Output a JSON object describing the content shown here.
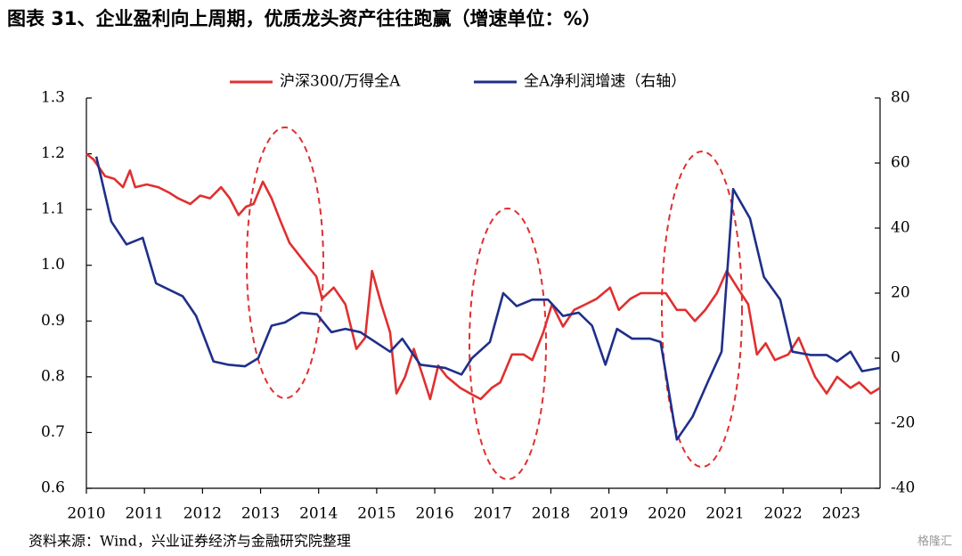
{
  "chart_data": {
    "type": "line",
    "title": "图表 31、企业盈利向上周期，优质龙头资产往往跑赢（增速单位：%）",
    "source": "资料来源：Wind，兴业证券经济与金融研究院整理",
    "watermark": "格隆汇",
    "xlim": [
      2010,
      2023.67
    ],
    "xticks": [
      2010,
      2011,
      2012,
      2013,
      2014,
      2015,
      2016,
      2017,
      2018,
      2019,
      2020,
      2021,
      2022,
      2023
    ],
    "ylim": [
      0.6,
      1.3
    ],
    "yticks": [
      0.6,
      0.7,
      0.8,
      0.9,
      {
        "value": 1,
        "label": "1.0"
      },
      1.1,
      1.2,
      1.3
    ],
    "y2lim": [
      -40,
      80
    ],
    "y2ticks": [
      -40,
      -20,
      0,
      20,
      40,
      60,
      80
    ],
    "series": [
      {
        "name": "沪深300/万得全A",
        "color": "#e03030",
        "x": [
          2010.0,
          2010.12,
          2010.32,
          2010.48,
          2010.63,
          2010.75,
          2010.84,
          2011.04,
          2011.24,
          2011.43,
          2011.58,
          2011.79,
          2011.96,
          2012.13,
          2012.32,
          2012.47,
          2012.62,
          2012.75,
          2012.88,
          2013.04,
          2013.19,
          2013.34,
          2013.5,
          2013.65,
          2013.8,
          2013.96,
          2014.06,
          2014.26,
          2014.46,
          2014.65,
          2014.8,
          2014.92,
          2015.08,
          2015.23,
          2015.34,
          2015.49,
          2015.64,
          2015.8,
          2015.92,
          2016.06,
          2016.21,
          2016.44,
          2016.61,
          2016.79,
          2016.98,
          2017.13,
          2017.33,
          2017.53,
          2017.68,
          2017.87,
          2018.02,
          2018.21,
          2018.4,
          2018.6,
          2018.79,
          2019.02,
          2019.17,
          2019.37,
          2019.55,
          2019.79,
          2019.98,
          2020.17,
          2020.32,
          2020.48,
          2020.66,
          2020.86,
          2021.03,
          2021.21,
          2021.4,
          2021.55,
          2021.7,
          2021.86,
          2022.09,
          2022.27,
          2022.39,
          2022.55,
          2022.75,
          2022.93,
          2023.16,
          2023.31,
          2023.51,
          2023.67
        ],
        "values": [
          1.2,
          1.19,
          1.16,
          1.155,
          1.14,
          1.17,
          1.14,
          1.145,
          1.14,
          1.13,
          1.12,
          1.11,
          1.125,
          1.12,
          1.14,
          1.12,
          1.09,
          1.105,
          1.11,
          1.15,
          1.12,
          1.08,
          1.04,
          1.02,
          1.0,
          0.98,
          0.94,
          0.96,
          0.93,
          0.85,
          0.87,
          0.99,
          0.93,
          0.88,
          0.77,
          0.8,
          0.85,
          0.8,
          0.76,
          0.82,
          0.8,
          0.78,
          0.77,
          0.76,
          0.78,
          0.79,
          0.84,
          0.84,
          0.83,
          0.88,
          0.93,
          0.89,
          0.92,
          0.93,
          0.94,
          0.96,
          0.92,
          0.94,
          0.95,
          0.95,
          0.95,
          0.92,
          0.92,
          0.9,
          0.92,
          0.95,
          0.99,
          0.96,
          0.93,
          0.84,
          0.86,
          0.83,
          0.84,
          0.87,
          0.84,
          0.8,
          0.77,
          0.8,
          0.78,
          0.79,
          0.77,
          0.78
        ]
      },
      {
        "name": "全A净利润增速（右轴）",
        "color": "#1f2f8a",
        "axis": "y2",
        "x": [
          2010.17,
          2010.43,
          2010.69,
          2010.97,
          2011.2,
          2011.66,
          2011.89,
          2012.19,
          2012.44,
          2012.73,
          2012.96,
          2013.19,
          2013.42,
          2013.7,
          2013.97,
          2014.22,
          2014.46,
          2014.72,
          2015.23,
          2015.44,
          2015.75,
          2016.18,
          2016.46,
          2016.64,
          2016.95,
          2017.18,
          2017.41,
          2017.68,
          2017.95,
          2018.21,
          2018.48,
          2018.71,
          2018.94,
          2019.14,
          2019.4,
          2019.71,
          2019.89,
          2020.17,
          2020.44,
          2020.71,
          2020.94,
          2021.14,
          2021.43,
          2021.67,
          2021.95,
          2022.16,
          2022.47,
          2022.75,
          2022.93,
          2023.16,
          2023.36,
          2023.67
        ],
        "values": [
          62,
          42,
          35,
          37,
          23,
          19,
          13,
          -1,
          -2,
          -2.5,
          0,
          10,
          11,
          14,
          13.5,
          8,
          9,
          8,
          2,
          6,
          -2,
          -3,
          -5,
          0,
          5,
          20,
          16,
          18,
          18,
          13,
          14,
          10,
          -2,
          9,
          6,
          6,
          5,
          -25,
          -18,
          -7,
          2,
          52,
          43,
          25,
          18,
          2,
          1,
          1,
          -1,
          2,
          -4,
          -3
        ]
      }
    ]
  }
}
